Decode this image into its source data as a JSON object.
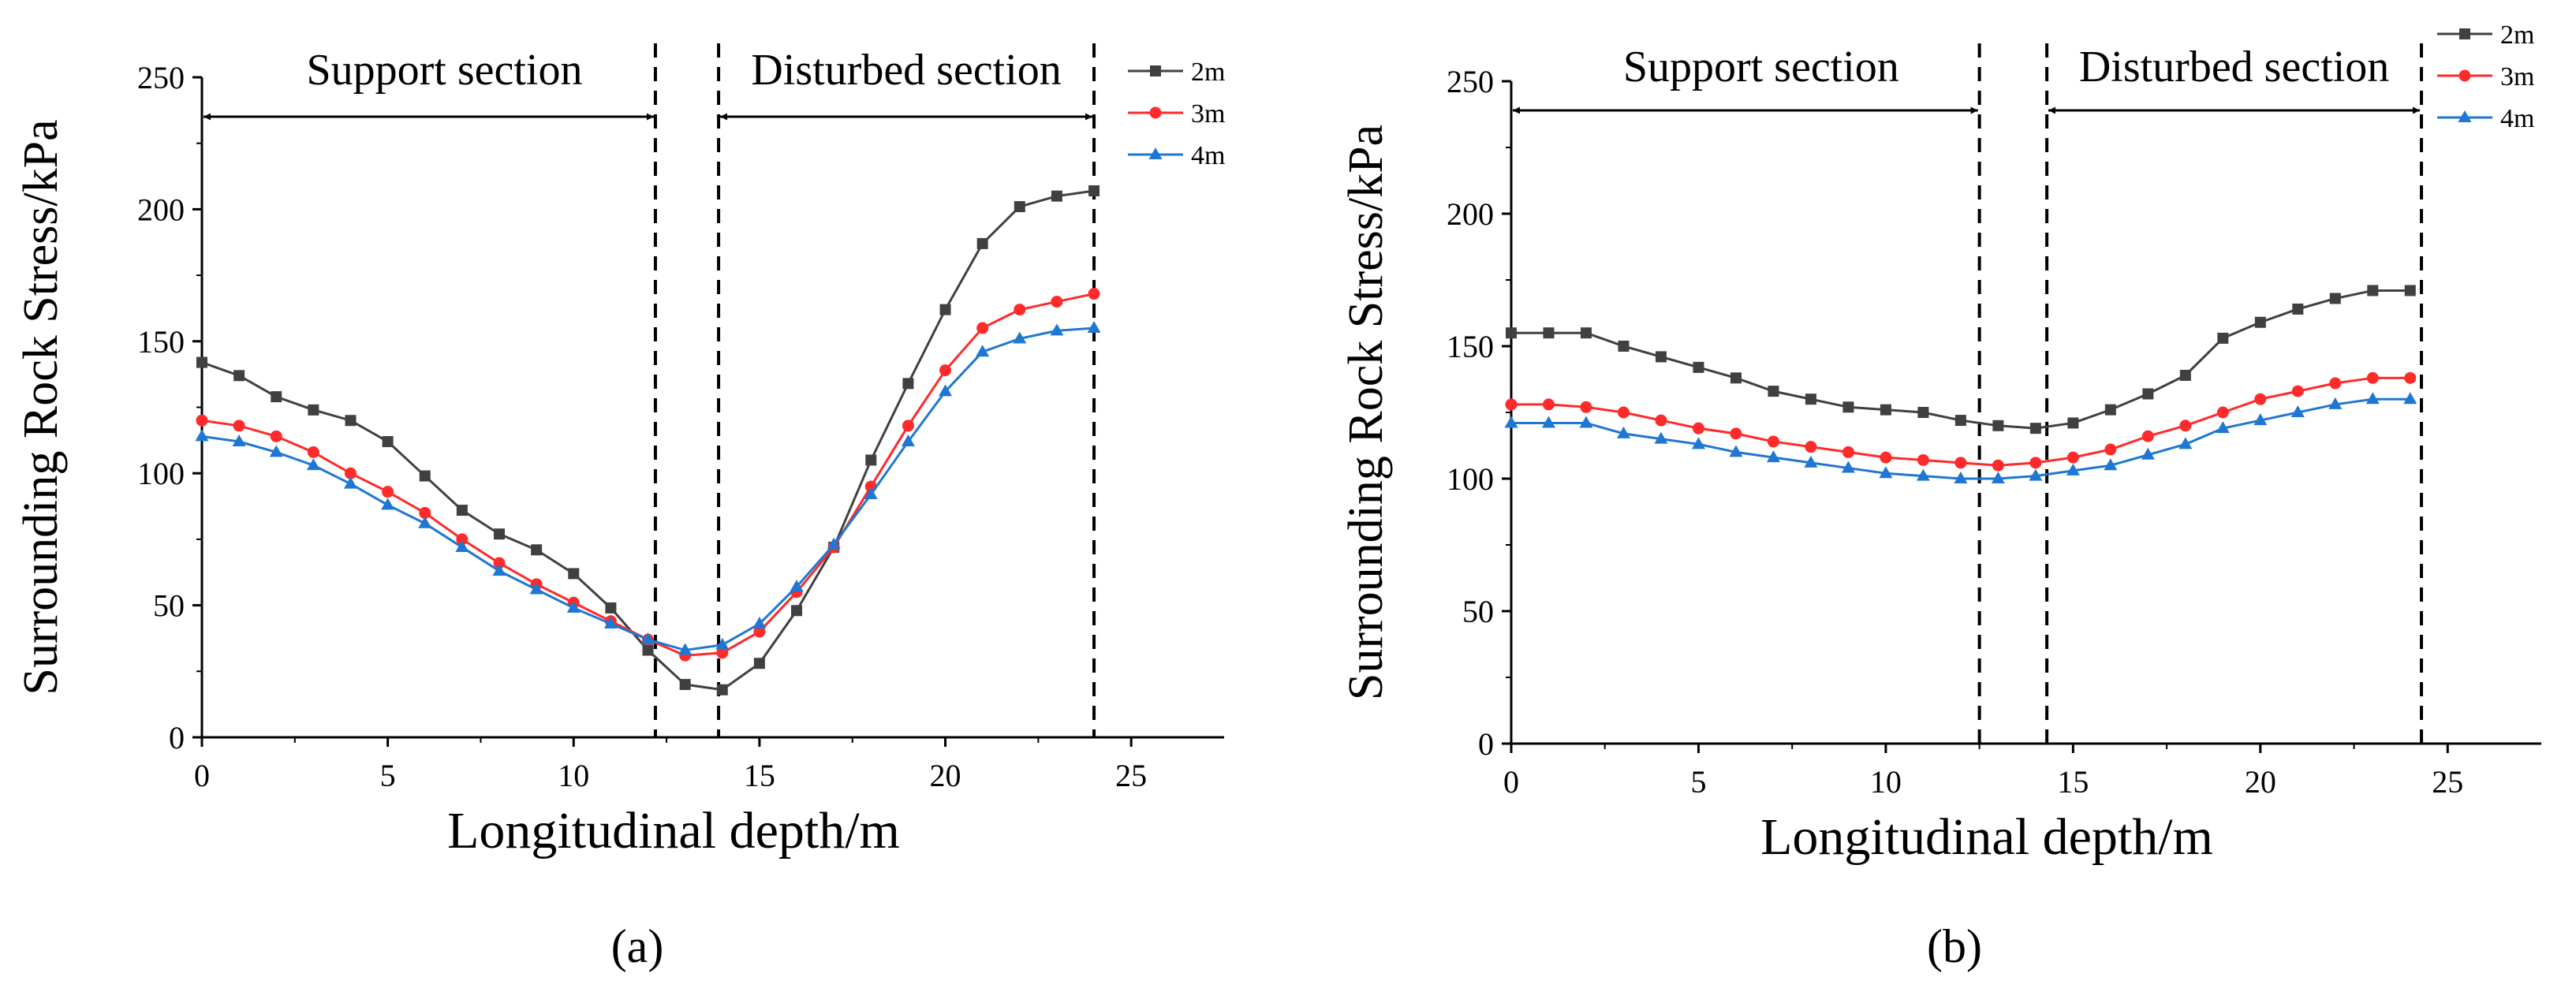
{
  "figure": {
    "panel_labels": [
      "(a)",
      "(b)"
    ]
  },
  "chart_data": [
    {
      "type": "line",
      "panel": "(a)",
      "xlabel": "Longitudinal depth/m",
      "ylabel": "Surrounding Rock Stress/kPa",
      "xlim": [
        0,
        27.5
      ],
      "ylim": [
        0,
        250
      ],
      "xticks": [
        0,
        5,
        10,
        15,
        20,
        25
      ],
      "yticks": [
        0,
        50,
        100,
        150,
        200,
        250
      ],
      "section_labels": {
        "support": "Support section",
        "disturbed": "Disturbed section"
      },
      "vlines": [
        0,
        12.2,
        13.9,
        24
      ],
      "legend_position": "top-right",
      "series": [
        {
          "name": "2m",
          "color": "#404040",
          "marker": "square",
          "x": [
            0,
            1,
            2,
            3,
            4,
            5,
            6,
            7,
            8,
            9,
            10,
            11,
            12,
            13,
            14,
            15,
            16,
            17,
            18,
            19,
            20,
            21,
            22,
            23,
            24
          ],
          "y": [
            142,
            137,
            129,
            124,
            120,
            112,
            99,
            86,
            77,
            71,
            62,
            49,
            33,
            20,
            18,
            28,
            48,
            72,
            105,
            134,
            162,
            187,
            201,
            205,
            207
          ]
        },
        {
          "name": "3m",
          "color": "#ff2a2a",
          "marker": "circle",
          "x": [
            0,
            1,
            2,
            3,
            4,
            5,
            6,
            7,
            8,
            9,
            10,
            11,
            12,
            13,
            14,
            15,
            16,
            17,
            18,
            19,
            20,
            21,
            22,
            23,
            24
          ],
          "y": [
            120,
            118,
            114,
            108,
            100,
            93,
            85,
            75,
            66,
            58,
            51,
            44,
            37,
            31,
            32,
            40,
            55,
            72,
            95,
            118,
            139,
            155,
            162,
            165,
            168
          ]
        },
        {
          "name": "4m",
          "color": "#1f77d4",
          "marker": "triangle",
          "x": [
            0,
            1,
            2,
            3,
            4,
            5,
            6,
            7,
            8,
            9,
            10,
            11,
            12,
            13,
            14,
            15,
            16,
            17,
            18,
            19,
            20,
            21,
            22,
            23,
            24
          ],
          "y": [
            114,
            112,
            108,
            103,
            96,
            88,
            81,
            72,
            63,
            56,
            49,
            43,
            37,
            33,
            35,
            43,
            57,
            73,
            92,
            112,
            131,
            146,
            151,
            154,
            155
          ]
        }
      ]
    },
    {
      "type": "line",
      "panel": "(b)",
      "xlabel": "Longitudinal depth/m",
      "ylabel": "Surrounding Rock Stress/kPa",
      "xlim": [
        0,
        27.5
      ],
      "ylim": [
        0,
        250
      ],
      "xticks": [
        0,
        5,
        10,
        15,
        20,
        25
      ],
      "yticks": [
        0,
        50,
        100,
        150,
        200,
        250
      ],
      "section_labels": {
        "support": "Support section",
        "disturbed": "Disturbed section"
      },
      "vlines": [
        0,
        12.5,
        14.3,
        24.3
      ],
      "legend_position": "top-right",
      "series": [
        {
          "name": "2m",
          "color": "#404040",
          "marker": "square",
          "x": [
            0,
            1,
            2,
            3,
            4,
            5,
            6,
            7,
            8,
            9,
            10,
            11,
            12,
            13,
            14,
            15,
            16,
            17,
            18,
            19,
            20,
            21,
            22,
            23,
            24
          ],
          "y": [
            155,
            155,
            155,
            150,
            146,
            142,
            138,
            133,
            130,
            127,
            126,
            125,
            122,
            120,
            119,
            121,
            126,
            132,
            139,
            153,
            159,
            164,
            168,
            171,
            171
          ]
        },
        {
          "name": "3m",
          "color": "#ff2a2a",
          "marker": "circle",
          "x": [
            0,
            1,
            2,
            3,
            4,
            5,
            6,
            7,
            8,
            9,
            10,
            11,
            12,
            13,
            14,
            15,
            16,
            17,
            18,
            19,
            20,
            21,
            22,
            23,
            24
          ],
          "y": [
            128,
            128,
            127,
            125,
            122,
            119,
            117,
            114,
            112,
            110,
            108,
            107,
            106,
            105,
            106,
            108,
            111,
            116,
            120,
            125,
            130,
            133,
            136,
            138,
            138
          ]
        },
        {
          "name": "4m",
          "color": "#1f77d4",
          "marker": "triangle",
          "x": [
            0,
            1,
            2,
            3,
            4,
            5,
            6,
            7,
            8,
            9,
            10,
            11,
            12,
            13,
            14,
            15,
            16,
            17,
            18,
            19,
            20,
            21,
            22,
            23,
            24
          ],
          "y": [
            121,
            121,
            121,
            117,
            115,
            113,
            110,
            108,
            106,
            104,
            102,
            101,
            100,
            100,
            101,
            103,
            105,
            109,
            113,
            119,
            122,
            125,
            128,
            130,
            130
          ]
        }
      ]
    }
  ]
}
